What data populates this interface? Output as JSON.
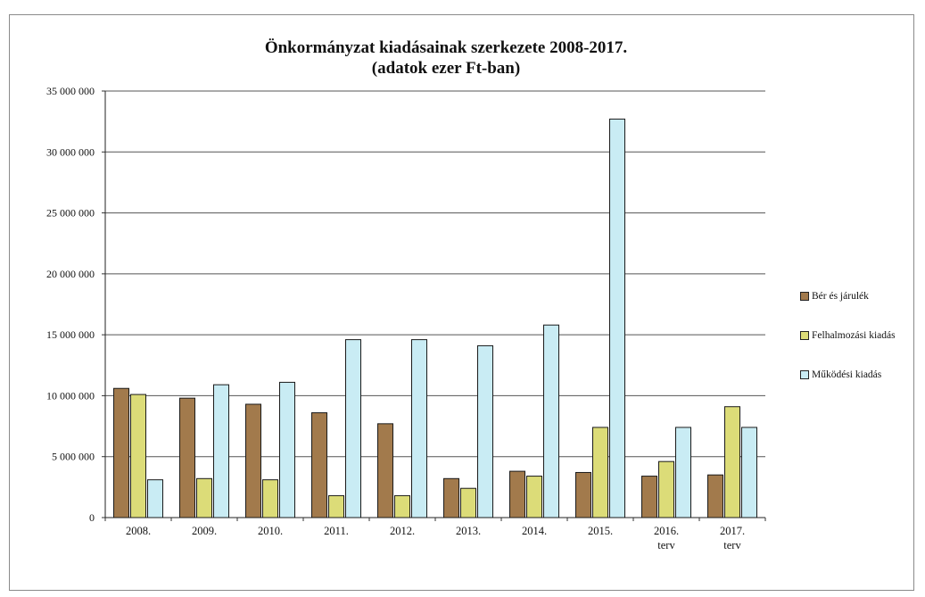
{
  "chart_data": {
    "type": "bar",
    "title": "Önkormányzat kiadásainak szerkezete 2008-2017.",
    "subtitle": "(adatok ezer Ft-ban)",
    "categories": [
      [
        "2008."
      ],
      [
        "2009."
      ],
      [
        "2010."
      ],
      [
        "2011."
      ],
      [
        "2012."
      ],
      [
        "2013."
      ],
      [
        "2014."
      ],
      [
        "2015."
      ],
      [
        "2016.",
        "terv"
      ],
      [
        "2017.",
        "terv"
      ]
    ],
    "series": [
      {
        "name": "Bér és járulék",
        "color": "#a27a4c",
        "values": [
          10600000,
          9800000,
          9300000,
          8600000,
          7700000,
          3200000,
          3800000,
          3700000,
          3400000,
          3500000
        ]
      },
      {
        "name": "Felhalmozási kiadás",
        "color": "#dcdc78",
        "values": [
          10100000,
          3200000,
          3100000,
          1800000,
          1800000,
          2400000,
          3400000,
          7400000,
          4600000,
          9100000
        ]
      },
      {
        "name": "Működési kiadás",
        "color": "#c9ecf4",
        "values": [
          3100000,
          10900000,
          11100000,
          14600000,
          14600000,
          14100000,
          15800000,
          32700000,
          7400000,
          7400000
        ]
      }
    ],
    "ylim": [
      0,
      35000000
    ],
    "yticks": [
      "0",
      "5 000 000",
      "10 000 000",
      "15 000 000",
      "20 000 000",
      "25 000 000",
      "30 000 000",
      "35 000 000"
    ],
    "ytick_values": [
      0,
      5000000,
      10000000,
      15000000,
      20000000,
      25000000,
      30000000,
      35000000
    ],
    "grid": true,
    "legend_position": "right"
  }
}
